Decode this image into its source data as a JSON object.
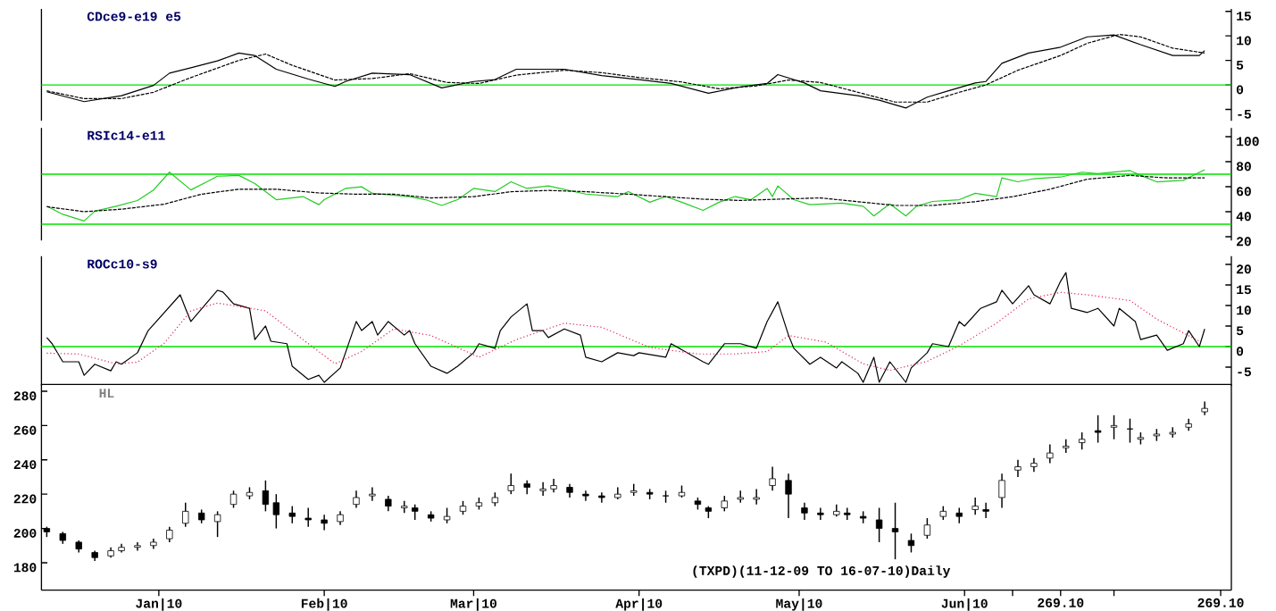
{
  "chart_data": [
    {
      "type": "line",
      "title": "CDce9-e19 e5",
      "xlim": [
        "2009-12-10",
        "2010-07-21"
      ],
      "ylim": [
        -7.3,
        15.5
      ],
      "yticks": [
        -5,
        0,
        5,
        10,
        15
      ],
      "tick_labels": "y",
      "grid": false,
      "marker": "none",
      "ref_lines": [
        {
          "axis": "y",
          "value": 0,
          "color": "#00e000"
        }
      ],
      "series": [
        {
          "color": "#000000",
          "line_style": "solid",
          "x": [
            "2009-12-11",
            "2009-12-18",
            "2009-12-25",
            "2009-12-31",
            "2010-01-03",
            "2010-01-07",
            "2010-01-12",
            "2010-01-16",
            "2010-01-19",
            "2010-01-23",
            "2010-01-29",
            "2010-02-03",
            "2010-02-05",
            "2010-02-10",
            "2010-02-17",
            "2010-02-23",
            "2010-03-01",
            "2010-03-05",
            "2010-03-09",
            "2010-03-18",
            "2010-03-25",
            "2010-04-01",
            "2010-04-07",
            "2010-04-14",
            "2010-04-20",
            "2010-04-25",
            "2010-04-27",
            "2010-05-02",
            "2010-05-05",
            "2010-05-12",
            "2010-05-16",
            "2010-05-21",
            "2010-05-25",
            "2010-05-29",
            "2010-06-03",
            "2010-06-05",
            "2010-06-08",
            "2010-06-13",
            "2010-06-19",
            "2010-06-24",
            "2010-06-29",
            "2010-07-04",
            "2010-07-10",
            "2010-07-15",
            "2010-07-16"
          ],
          "values": [
            -1.4,
            -3.4,
            -2.2,
            -0.1,
            2.4,
            3.5,
            4.9,
            6.5,
            6.0,
            3.2,
            1.2,
            -0.3,
            0.7,
            2.4,
            2.1,
            -0.6,
            0.7,
            1.1,
            3.2,
            3.2,
            1.9,
            1.1,
            0.3,
            -1.7,
            -0.4,
            0.3,
            2.1,
            0.4,
            -1.2,
            -2.2,
            -3.1,
            -4.7,
            -2.5,
            -1.2,
            0.4,
            0.7,
            4.4,
            6.5,
            7.7,
            9.8,
            10.2,
            8.2,
            6.0,
            6.0,
            7.0
          ]
        },
        {
          "color": "#000000",
          "line_style": "dashed",
          "x": [
            "2009-12-11",
            "2009-12-18",
            "2009-12-25",
            "2009-12-31",
            "2010-01-07",
            "2010-01-16",
            "2010-01-21",
            "2010-01-26",
            "2010-02-03",
            "2010-02-10",
            "2010-02-17",
            "2010-02-24",
            "2010-03-02",
            "2010-03-09",
            "2010-03-18",
            "2010-03-25",
            "2010-04-01",
            "2010-04-09",
            "2010-04-16",
            "2010-04-23",
            "2010-04-29",
            "2010-05-05",
            "2010-05-12",
            "2010-05-19",
            "2010-05-25",
            "2010-05-31",
            "2010-06-05",
            "2010-06-11",
            "2010-06-19",
            "2010-06-24",
            "2010-06-30",
            "2010-07-04",
            "2010-07-10",
            "2010-07-16"
          ],
          "values": [
            -1.2,
            -2.8,
            -2.8,
            -1.5,
            1.5,
            5.0,
            6.3,
            4.0,
            1.0,
            1.3,
            2.3,
            0.5,
            0.3,
            2.0,
            3.0,
            2.5,
            1.5,
            0.6,
            -0.8,
            -0.2,
            1.0,
            0.5,
            -1.5,
            -3.5,
            -3.5,
            -1.5,
            0,
            3.0,
            6.0,
            8.5,
            10.3,
            9.8,
            7.5,
            6.5
          ]
        }
      ]
    },
    {
      "type": "line",
      "title": "RSIc14-e11",
      "xlim": [
        "2009-12-10",
        "2010-07-21"
      ],
      "ylim": [
        17,
        107
      ],
      "yticks": [
        20,
        40,
        60,
        80,
        100
      ],
      "tick_labels": "y",
      "grid": false,
      "marker": "none",
      "ref_lines": [
        {
          "axis": "y",
          "value": 70,
          "color": "#00e000"
        },
        {
          "axis": "y",
          "value": 30,
          "color": "#00e000"
        }
      ],
      "series": [
        {
          "color": "#22cc22",
          "line_style": "solid",
          "x": [
            "2009-12-11",
            "2009-12-14",
            "2009-12-18",
            "2009-12-20",
            "2009-12-24",
            "2009-12-28",
            "2009-12-31",
            "2010-01-03",
            "2010-01-07",
            "2010-01-10",
            "2010-01-12",
            "2010-01-16",
            "2010-01-19",
            "2010-01-23",
            "2010-01-28",
            "2010-01-31",
            "2010-02-01",
            "2010-02-05",
            "2010-02-08",
            "2010-02-10",
            "2010-02-17",
            "2010-02-20",
            "2010-02-23",
            "2010-02-26",
            "2010-03-01",
            "2010-03-05",
            "2010-03-08",
            "2010-03-11",
            "2010-03-15",
            "2010-03-22",
            "2010-03-28",
            "2010-03-30",
            "2010-04-03",
            "2010-04-06",
            "2010-04-09",
            "2010-04-13",
            "2010-04-16",
            "2010-04-19",
            "2010-04-22",
            "2010-04-25",
            "2010-04-26",
            "2010-04-27",
            "2010-04-30",
            "2010-05-03",
            "2010-05-09",
            "2010-05-13",
            "2010-05-15",
            "2010-05-18",
            "2010-05-21",
            "2010-05-23",
            "2010-05-26",
            "2010-05-31",
            "2010-06-03",
            "2010-06-07",
            "2010-06-08",
            "2010-06-11",
            "2010-06-14",
            "2010-06-19",
            "2010-06-23",
            "2010-06-26",
            "2010-07-02",
            "2010-07-04",
            "2010-07-07",
            "2010-07-12",
            "2010-07-16"
          ],
          "values": [
            44.4,
            37.9,
            32.6,
            40.4,
            44.4,
            48.9,
            57.4,
            71.6,
            57.4,
            63.9,
            68.4,
            69.0,
            62.5,
            49.6,
            52.1,
            45.6,
            49.6,
            58.6,
            59.9,
            54.7,
            52.1,
            49.6,
            45.0,
            49.6,
            58.6,
            56.1,
            63.9,
            58.6,
            60.6,
            54.1,
            52.1,
            56.1,
            47.6,
            52.1,
            47.6,
            41.1,
            47.6,
            52.1,
            49.6,
            58.6,
            52.1,
            60.6,
            49.6,
            45.6,
            46.9,
            44.4,
            36.6,
            46.3,
            36.6,
            44.4,
            48.2,
            49.6,
            54.7,
            52.1,
            67.1,
            63.9,
            66.4,
            67.7,
            71.6,
            70.4,
            72.9,
            69.0,
            63.9,
            65.1,
            73.6
          ]
        },
        {
          "color": "#000000",
          "line_style": "dashed",
          "x": [
            "2009-12-11",
            "2009-12-18",
            "2009-12-25",
            "2010-01-02",
            "2010-01-09",
            "2010-01-16",
            "2010-01-23",
            "2010-01-31",
            "2010-02-07",
            "2010-02-14",
            "2010-02-21",
            "2010-03-01",
            "2010-03-08",
            "2010-03-15",
            "2010-03-22",
            "2010-03-30",
            "2010-04-06",
            "2010-04-13",
            "2010-04-20",
            "2010-04-27",
            "2010-05-05",
            "2010-05-12",
            "2010-05-19",
            "2010-05-26",
            "2010-06-03",
            "2010-06-10",
            "2010-06-17",
            "2010-06-24",
            "2010-07-02",
            "2010-07-09",
            "2010-07-16"
          ],
          "values": [
            44,
            40,
            42,
            46,
            54,
            58,
            58,
            55,
            54,
            54,
            51,
            52,
            56,
            57,
            56,
            54,
            52,
            50,
            49,
            50,
            51,
            48,
            45,
            45,
            48,
            52,
            58,
            66,
            69,
            67,
            67
          ]
        }
      ]
    },
    {
      "type": "line",
      "title": "ROCc10-s9",
      "xlim": [
        "2009-12-10",
        "2010-07-21"
      ],
      "ylim": [
        -9.5,
        22
      ],
      "yticks": [
        -5,
        0,
        5,
        10,
        15,
        20
      ],
      "tick_labels": "y",
      "grid": false,
      "marker": "none",
      "ref_lines": [
        {
          "axis": "y",
          "value": 0,
          "color": "#00e000"
        }
      ],
      "series": [
        {
          "color": "#000000",
          "line_style": "solid",
          "x": [
            "2009-12-11",
            "2009-12-12",
            "2009-12-14",
            "2009-12-17",
            "2009-12-18",
            "2009-12-20",
            "2009-12-23",
            "2009-12-24",
            "2009-12-25",
            "2009-12-28",
            "2009-12-30",
            "2010-01-05",
            "2010-01-06",
            "2010-01-07",
            "2010-01-12",
            "2010-01-13",
            "2010-01-15",
            "2010-01-18",
            "2010-01-19",
            "2010-01-21",
            "2010-01-22",
            "2010-01-25",
            "2010-01-26",
            "2010-01-29",
            "2010-01-31",
            "2010-02-01",
            "2010-02-04",
            "2010-02-07",
            "2010-02-08",
            "2010-02-10",
            "2010-02-11",
            "2010-02-13",
            "2010-02-16",
            "2010-02-17",
            "2010-02-18",
            "2010-02-21",
            "2010-02-24",
            "2010-02-26",
            "2010-03-01",
            "2010-03-02",
            "2010-03-05",
            "2010-03-06",
            "2010-03-08",
            "2010-03-11",
            "2010-03-12",
            "2010-03-14",
            "2010-03-15",
            "2010-03-18",
            "2010-03-21",
            "2010-03-22",
            "2010-03-25",
            "2010-03-28",
            "2010-03-31",
            "2010-04-01",
            "2010-04-06",
            "2010-04-07",
            "2010-04-10",
            "2010-04-13",
            "2010-04-14",
            "2010-04-17",
            "2010-04-20",
            "2010-04-23",
            "2010-04-25",
            "2010-04-27",
            "2010-04-29",
            "2010-04-30",
            "2010-05-03",
            "2010-05-05",
            "2010-05-08",
            "2010-05-09",
            "2010-05-12",
            "2010-05-13",
            "2010-05-15",
            "2010-05-16",
            "2010-05-18",
            "2010-05-21",
            "2010-05-22",
            "2010-05-25",
            "2010-05-26",
            "2010-05-29",
            "2010-05-31",
            "2010-06-01",
            "2010-06-04",
            "2010-06-07",
            "2010-06-08",
            "2010-06-10",
            "2010-06-13",
            "2010-06-14",
            "2010-06-17",
            "2010-06-19",
            "2010-06-20",
            "2010-06-21",
            "2010-06-24",
            "2010-06-26",
            "2010-06-29",
            "2010-06-30",
            "2010-07-03",
            "2010-07-04",
            "2010-07-07",
            "2010-07-09",
            "2010-07-12",
            "2010-07-13",
            "2010-07-15",
            "2010-07-16"
          ],
          "values": [
            2.2,
            0.7,
            -3.7,
            -3.7,
            -7.0,
            -4.3,
            -5.9,
            -3.7,
            -4.3,
            -1.5,
            3.9,
            12.6,
            9.3,
            6.1,
            13.7,
            13.3,
            10.4,
            9.3,
            1.7,
            5.0,
            1.3,
            0.7,
            -4.8,
            -8.0,
            -7.0,
            -8.7,
            -5.2,
            6.1,
            3.9,
            6.1,
            2.8,
            6.1,
            2.8,
            3.9,
            0.7,
            -4.8,
            -6.5,
            -4.8,
            -1.5,
            0.7,
            -0.4,
            3.9,
            7.2,
            10.4,
            3.9,
            3.9,
            2.2,
            4.3,
            2.8,
            -2.6,
            -3.7,
            -1.5,
            -2.2,
            -1.5,
            -2.6,
            0.7,
            -1.5,
            -3.7,
            -4.3,
            0.7,
            0.7,
            -0.4,
            6.1,
            10.9,
            2.8,
            -0.4,
            -4.3,
            -2.6,
            -5.2,
            -3.7,
            -6.5,
            -8.7,
            -2.6,
            -8.7,
            -3.7,
            -8.7,
            -5.2,
            -1.5,
            0.7,
            0,
            6.1,
            5.0,
            9.3,
            10.9,
            13.7,
            10.4,
            14.8,
            12.6,
            10.4,
            15.9,
            18.0,
            9.3,
            8.3,
            9.3,
            5.0,
            9.3,
            6.1,
            1.7,
            2.8,
            -0.9,
            0.7,
            3.9,
            0,
            4.3
          ]
        },
        {
          "color": "#e0204d",
          "line_style": "dotted",
          "x": [
            "2009-12-11",
            "2009-12-17",
            "2009-12-24",
            "2009-12-28",
            "2010-01-02",
            "2010-01-07",
            "2010-01-12",
            "2010-01-21",
            "2010-01-26",
            "2010-02-03",
            "2010-02-08",
            "2010-02-14",
            "2010-02-21",
            "2010-03-02",
            "2010-03-09",
            "2010-03-18",
            "2010-03-25",
            "2010-04-03",
            "2010-04-12",
            "2010-04-19",
            "2010-04-25",
            "2010-04-29",
            "2010-05-06",
            "2010-05-13",
            "2010-05-18",
            "2010-05-25",
            "2010-05-31",
            "2010-06-07",
            "2010-06-13",
            "2010-06-19",
            "2010-06-24",
            "2010-07-02",
            "2010-07-07",
            "2010-07-15"
          ],
          "values": [
            -1.6,
            -1.8,
            -4.2,
            -3.8,
            0.8,
            8.7,
            10.6,
            8.7,
            3.7,
            -4.2,
            -1.2,
            4.3,
            2.7,
            -2.6,
            1.7,
            5.7,
            4.7,
            -0.2,
            -1.8,
            -1.8,
            -1.2,
            2.7,
            1.1,
            -4.2,
            -5.8,
            -3.6,
            0.2,
            5.7,
            11.6,
            13.2,
            12.6,
            11.2,
            6.7,
            1.3
          ]
        }
      ]
    },
    {
      "type": "candlestick",
      "title": "HL",
      "xlim": [
        "2009-12-10",
        "2010-07-21"
      ],
      "ylim": [
        164,
        284
      ],
      "yticks": [
        180,
        200,
        220,
        240,
        260,
        280
      ],
      "xticks": [
        {
          "value": "2010-01-01",
          "label": "Jan|10"
        },
        {
          "value": "2010-02-01",
          "label": "Feb|10"
        },
        {
          "value": "2010-03-01",
          "label": "Mar|10"
        },
        {
          "value": "2010-04-01",
          "label": "Apr|10"
        },
        {
          "value": "2010-05-01",
          "label": "May|10"
        },
        {
          "value": "2010-06-01",
          "label": "Jun|10"
        },
        {
          "value": "2010-06-10",
          "label": null
        },
        {
          "value": "2010-06-19",
          "label": "269.10"
        },
        {
          "value": "2010-06-29",
          "label": null
        },
        {
          "value": "2010-07-19",
          "label": "269.10"
        }
      ],
      "grid": false,
      "color": "#000000",
      "annotations": [
        "(TXPD)(11-12-09 TO 16-07-10)Daily"
      ],
      "x": [
        "2009-12-11",
        "2009-12-14",
        "2009-12-17",
        "2009-12-20",
        "2009-12-23",
        "2009-12-25",
        "2009-12-28",
        "2009-12-31",
        "2010-01-03",
        "2010-01-06",
        "2010-01-09",
        "2010-01-12",
        "2010-01-15",
        "2010-01-18",
        "2010-01-21",
        "2010-01-23",
        "2010-01-26",
        "2010-01-29",
        "2010-02-01",
        "2010-02-04",
        "2010-02-07",
        "2010-02-10",
        "2010-02-13",
        "2010-02-16",
        "2010-02-18",
        "2010-02-21",
        "2010-02-24",
        "2010-02-27",
        "2010-03-02",
        "2010-03-05",
        "2010-03-08",
        "2010-03-11",
        "2010-03-14",
        "2010-03-16",
        "2010-03-19",
        "2010-03-22",
        "2010-03-25",
        "2010-03-28",
        "2010-03-31",
        "2010-04-03",
        "2010-04-06",
        "2010-04-09",
        "2010-04-12",
        "2010-04-14",
        "2010-04-17",
        "2010-04-20",
        "2010-04-23",
        "2010-04-26",
        "2010-04-29",
        "2010-05-02",
        "2010-05-05",
        "2010-05-08",
        "2010-05-10",
        "2010-05-13",
        "2010-05-16",
        "2010-05-19",
        "2010-05-22",
        "2010-05-25",
        "2010-05-28",
        "2010-05-31",
        "2010-06-03",
        "2010-06-05",
        "2010-06-08",
        "2010-06-11",
        "2010-06-14",
        "2010-06-17",
        "2010-06-20",
        "2010-06-23",
        "2010-06-26",
        "2010-06-29",
        "2010-07-02",
        "2010-07-04",
        "2010-07-07",
        "2010-07-10",
        "2010-07-13",
        "2010-07-16"
      ],
      "ohlc": [
        [
          200,
          201,
          195,
          198
        ],
        [
          197,
          198,
          191,
          193
        ],
        [
          192,
          193,
          186,
          188
        ],
        [
          186,
          187,
          181,
          183
        ],
        [
          184,
          189,
          183,
          187
        ],
        [
          187,
          191,
          186,
          189
        ],
        [
          189,
          192,
          187,
          190
        ],
        [
          190,
          194,
          188,
          192
        ],
        [
          194,
          201,
          192,
          199
        ],
        [
          203,
          215,
          201,
          210
        ],
        [
          209,
          211,
          203,
          205
        ],
        [
          204,
          210,
          195,
          208
        ],
        [
          214,
          222,
          212,
          220
        ],
        [
          219,
          224,
          217,
          221
        ],
        [
          222,
          228,
          210,
          214
        ],
        [
          215,
          220,
          200,
          208
        ],
        [
          209,
          213,
          203,
          207
        ],
        [
          206,
          212,
          201,
          205
        ],
        [
          205,
          208,
          199,
          203
        ],
        [
          204,
          210,
          202,
          208
        ],
        [
          214,
          222,
          212,
          218
        ],
        [
          219,
          224,
          216,
          220
        ],
        [
          217,
          219,
          210,
          213
        ],
        [
          212,
          216,
          209,
          213
        ],
        [
          212,
          214,
          205,
          210
        ],
        [
          208,
          210,
          204,
          206
        ],
        [
          205,
          212,
          203,
          207
        ],
        [
          210,
          216,
          208,
          213
        ],
        [
          213,
          218,
          211,
          215
        ],
        [
          215,
          221,
          213,
          218
        ],
        [
          222,
          232,
          220,
          225
        ],
        [
          226,
          228,
          220,
          224
        ],
        [
          222,
          227,
          219,
          223
        ],
        [
          223,
          229,
          221,
          225
        ],
        [
          224,
          226,
          218,
          221
        ],
        [
          220,
          222,
          216,
          219
        ],
        [
          219,
          221,
          215,
          218
        ],
        [
          218,
          224,
          217,
          220
        ],
        [
          221,
          226,
          219,
          222
        ],
        [
          221,
          223,
          217,
          220
        ],
        [
          219,
          222,
          215,
          219
        ],
        [
          219,
          225,
          218,
          221
        ],
        [
          216,
          218,
          211,
          214
        ],
        [
          212,
          213,
          206,
          210
        ],
        [
          212,
          219,
          210,
          216
        ],
        [
          217,
          222,
          215,
          218
        ],
        [
          217,
          223,
          214,
          218
        ],
        [
          225,
          236,
          222,
          229
        ],
        [
          228,
          232,
          206,
          220
        ],
        [
          212,
          215,
          205,
          209
        ],
        [
          209,
          212,
          205,
          208
        ],
        [
          208,
          214,
          207,
          210
        ],
        [
          209,
          212,
          205,
          208
        ],
        [
          207,
          210,
          203,
          206
        ],
        [
          205,
          212,
          192,
          200
        ],
        [
          200,
          215,
          182,
          198
        ],
        [
          193,
          197,
          186,
          190
        ],
        [
          196,
          206,
          194,
          202
        ],
        [
          207,
          213,
          205,
          210
        ],
        [
          209,
          212,
          203,
          207
        ],
        [
          211,
          218,
          208,
          213
        ],
        [
          211,
          215,
          206,
          210
        ],
        [
          218,
          232,
          212,
          228
        ],
        [
          234,
          240,
          230,
          236
        ],
        [
          236,
          241,
          233,
          238
        ],
        [
          241,
          249,
          238,
          244
        ],
        [
          247,
          252,
          244,
          248
        ],
        [
          250,
          256,
          246,
          252
        ],
        [
          257,
          266,
          250,
          256
        ],
        [
          259,
          266,
          252,
          260
        ],
        [
          258,
          264,
          250,
          258
        ],
        [
          252,
          256,
          249,
          253
        ],
        [
          254,
          258,
          251,
          255
        ],
        [
          255,
          259,
          253,
          256
        ],
        [
          259,
          264,
          257,
          261
        ],
        [
          268,
          274,
          266,
          270
        ]
      ]
    }
  ]
}
